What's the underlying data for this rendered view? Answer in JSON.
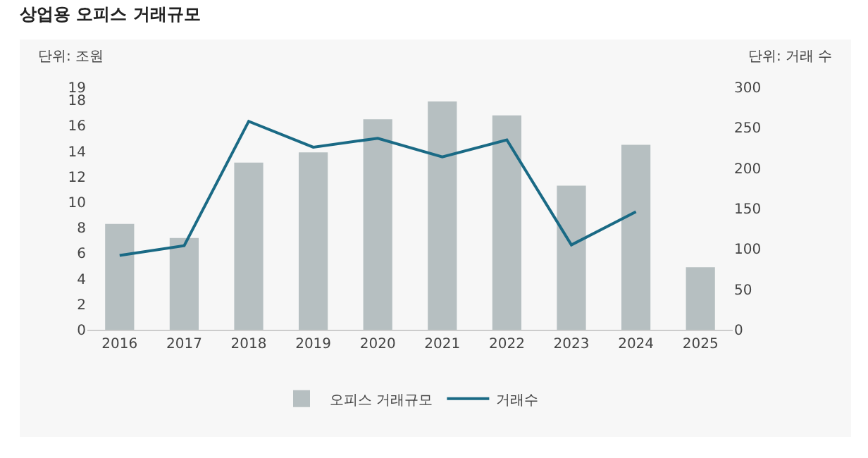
{
  "chart_data": {
    "type": "bar",
    "title": "상업용 오피스 거래규모",
    "ylabel": "단위: 조원",
    "y2label": "단위: 거래 수",
    "categories": [
      "2016",
      "2017",
      "2018",
      "2019",
      "2020",
      "2021",
      "2022",
      "2023",
      "2024",
      "2025"
    ],
    "series": [
      {
        "name": "오피스 거래규모",
        "color": "#b6bfc1",
        "values": [
          8.3,
          7.2,
          13.1,
          13.9,
          16.5,
          17.9,
          16.8,
          11.3,
          14.5,
          4.9
        ]
      },
      {
        "name": "거래수",
        "type": "line",
        "axis": "y2",
        "color": "#1a6a85",
        "values": [
          92,
          104,
          258,
          226,
          237,
          214,
          235,
          105,
          146,
          null
        ]
      }
    ],
    "ylim": [
      0,
      19
    ],
    "yticks": [
      0,
      2,
      4,
      6,
      8,
      10,
      12,
      14,
      16,
      18,
      19
    ],
    "y2lim": [
      0,
      300
    ],
    "y2ticks": [
      0,
      50,
      100,
      150,
      200,
      250,
      300
    ],
    "grid": false,
    "legend": "bottom"
  }
}
